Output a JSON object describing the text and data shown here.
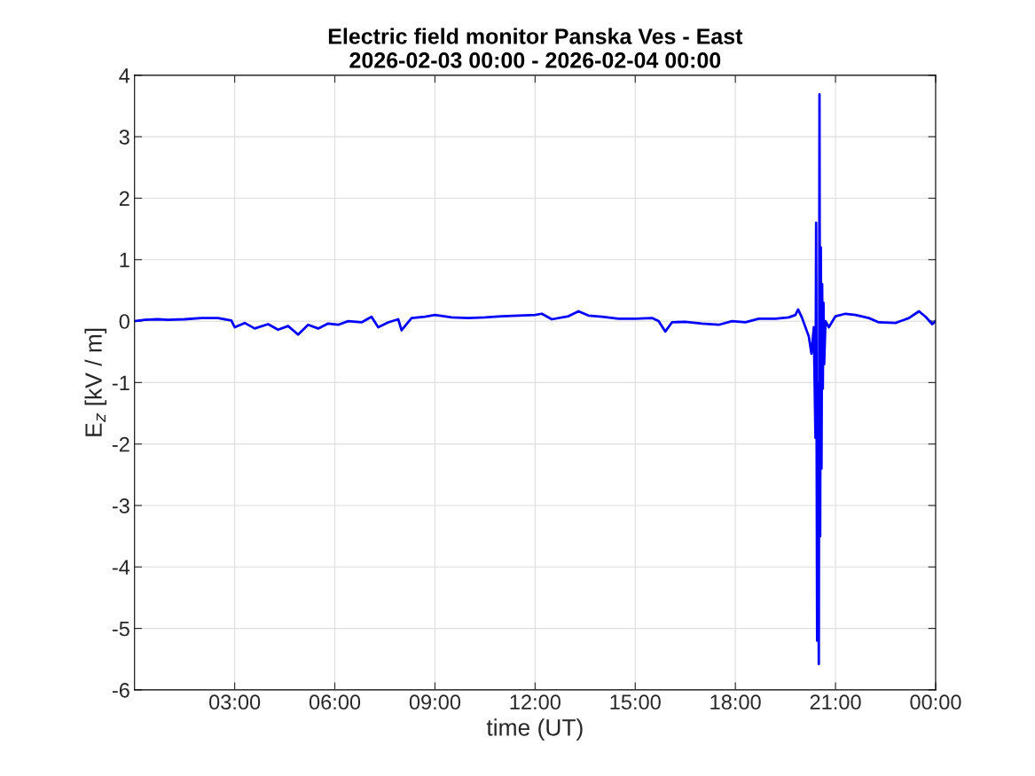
{
  "chart_data": {
    "type": "line",
    "title": "Electric field monitor Panska Ves - East\n2026-02-03 00:00 - 2026-02-04 00:00",
    "xlabel": "time (UT)",
    "ylabel": "E$_{z}$ [kV / m]",
    "x": [
      0,
      0.3,
      0.7,
      1.0,
      1.5,
      2.0,
      2.5,
      2.9,
      3.0,
      3.3,
      3.6,
      4.0,
      4.3,
      4.6,
      4.9,
      5.2,
      5.5,
      5.8,
      6.1,
      6.4,
      6.8,
      7.1,
      7.3,
      7.6,
      7.9,
      8.0,
      8.3,
      8.7,
      9.0,
      9.5,
      10,
      10.5,
      11,
      11.5,
      12,
      12.2,
      12.5,
      13,
      13.3,
      13.6,
      14,
      14.5,
      15,
      15.5,
      15.7,
      15.9,
      16.1,
      16.5,
      17,
      17.5,
      17.9,
      18.3,
      18.7,
      19.2,
      19.6,
      19.8,
      19.88,
      20.0,
      20.2,
      20.28,
      20.35,
      20.4,
      20.42,
      20.45,
      20.47,
      20.5,
      20.52,
      20.54,
      20.56,
      20.58,
      20.6,
      20.62,
      20.64,
      20.66,
      20.7,
      20.8,
      21.0,
      21.3,
      21.6,
      22,
      22.3,
      22.8,
      23.2,
      23.5,
      23.7,
      23.9,
      24
    ],
    "series": [
      {
        "color": "#0000ff",
        "values": [
          0.0,
          0.02,
          0.03,
          0.02,
          0.03,
          0.05,
          0.05,
          0.01,
          -0.1,
          -0.03,
          -0.12,
          -0.05,
          -0.14,
          -0.08,
          -0.22,
          -0.06,
          -0.12,
          -0.04,
          -0.06,
          0.0,
          -0.02,
          0.07,
          -0.1,
          -0.02,
          0.03,
          -0.15,
          0.05,
          0.07,
          0.1,
          0.06,
          0.05,
          0.06,
          0.08,
          0.09,
          0.1,
          0.12,
          0.03,
          0.08,
          0.16,
          0.09,
          0.07,
          0.04,
          0.04,
          0.05,
          0.0,
          -0.17,
          -0.02,
          -0.01,
          -0.04,
          -0.06,
          0.0,
          -0.02,
          0.04,
          0.04,
          0.06,
          0.1,
          0.19,
          0.05,
          -0.25,
          -0.53,
          -0.1,
          -1.9,
          1.6,
          -5.2,
          -1.0,
          -5.58,
          3.69,
          -3.5,
          1.2,
          -2.4,
          0.6,
          -1.1,
          0.3,
          -0.7,
          0.0,
          -0.1,
          0.08,
          0.12,
          0.1,
          0.05,
          -0.02,
          -0.03,
          0.05,
          0.16,
          0.07,
          -0.05,
          0.0
        ]
      }
    ],
    "xlim": [
      0,
      24
    ],
    "xticks": [
      {
        "value": 3,
        "label": "03:00"
      },
      {
        "value": 6,
        "label": "06:00"
      },
      {
        "value": 9,
        "label": "09:00"
      },
      {
        "value": 12,
        "label": "12:00"
      },
      {
        "value": 15,
        "label": "15:00"
      },
      {
        "value": 18,
        "label": "18:00"
      },
      {
        "value": 21,
        "label": "21:00"
      },
      {
        "value": 24,
        "label": "00:00"
      }
    ],
    "ylim": [
      -6,
      4
    ],
    "yticks": [
      -6,
      -5,
      -4,
      -3,
      -2,
      -1,
      0,
      1,
      2,
      3,
      4
    ],
    "grid": true,
    "line_style": "solid",
    "marker": "none"
  }
}
